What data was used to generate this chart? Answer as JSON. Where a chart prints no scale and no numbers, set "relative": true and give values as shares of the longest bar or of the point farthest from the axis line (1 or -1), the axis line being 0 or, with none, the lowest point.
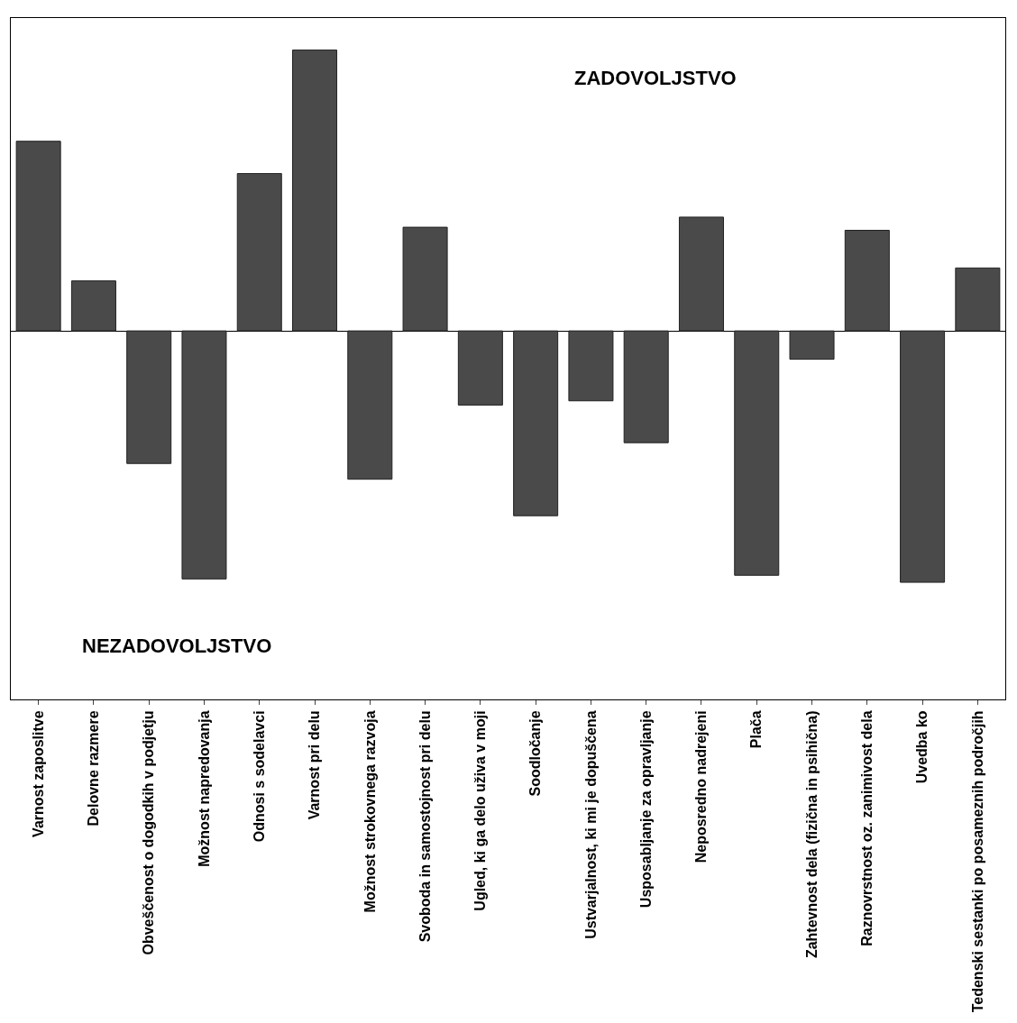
{
  "chart_data": {
    "type": "bar",
    "relative": true,
    "color": "#4a4a4a",
    "categories": [
      "Varnost zaposlitve",
      "Delovne razmere",
      "Obveščenost o dogodkih v podjetju",
      "Možnost napredovanja",
      "Odnosi s sodelavci",
      "Varnost pri delu",
      "Možnost strokovnega razvoja",
      "Svoboda in samostojnost pri delu",
      "Ugled, ki ga delo uživa v moji",
      "Soodločanje",
      "Ustvarjalnost, ki mi je dopuščena",
      "Usposabljanje za opravljanje",
      "Neposredno nadrejeni",
      "Plača",
      "Zahtevnost dela (fizična in psihična)",
      "Raznovrstnost oz. zanimivost dela",
      "Uvedba ko",
      "Tedenski sestanki po posameznih področjih"
    ],
    "values": [
      0.675,
      0.178,
      -0.472,
      -0.883,
      0.56,
      1,
      -0.528,
      0.369,
      -0.264,
      -0.658,
      -0.249,
      -0.398,
      0.405,
      -0.87,
      -0.101,
      0.358,
      -0.895,
      0.224
    ],
    "annotations": [
      "ZADOVOLJSTVO",
      "NEZADOVOLJSTVO"
    ]
  }
}
